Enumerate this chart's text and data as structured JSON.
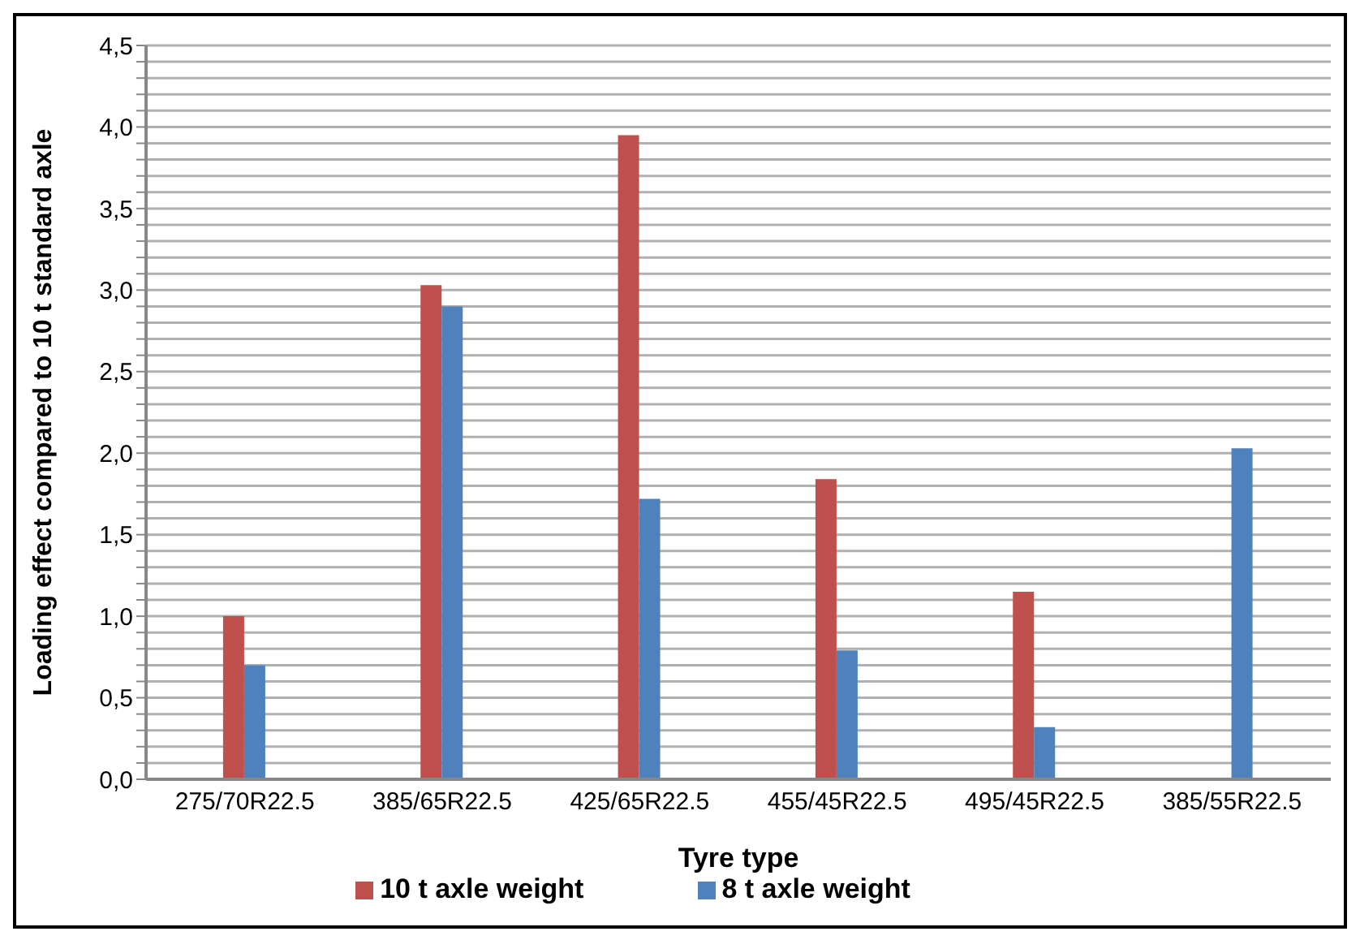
{
  "chart_data": {
    "type": "bar",
    "xlabel": "Tyre type",
    "ylabel": "Loading effect compared to 10 t standard axle",
    "categories": [
      "275/70R22.5",
      "385/65R22.5",
      "425/65R22.5",
      "455/45R22.5",
      "495/45R22.5",
      "385/55R22.5"
    ],
    "series": [
      {
        "name": "10 t axle weight",
        "color": "#c0504d",
        "values": [
          1.0,
          3.03,
          3.95,
          1.84,
          1.15,
          null
        ]
      },
      {
        "name": "8 t axle weight",
        "color": "#4f81bd",
        "values": [
          0.7,
          2.9,
          1.72,
          0.79,
          0.32,
          2.03
        ]
      }
    ],
    "ylim": [
      0,
      4.5
    ],
    "yticks": [
      {
        "value": 0,
        "label": "0,0"
      },
      {
        "value": 0.1,
        "label": null
      },
      {
        "value": 0.2,
        "label": null
      },
      {
        "value": 0.3,
        "label": null
      },
      {
        "value": 0.4,
        "label": null
      },
      {
        "value": 0.5,
        "label": "0,5"
      },
      {
        "value": 0.6,
        "label": null
      },
      {
        "value": 0.7,
        "label": null
      },
      {
        "value": 0.8,
        "label": null
      },
      {
        "value": 0.9,
        "label": null
      },
      {
        "value": 1,
        "label": "1,0"
      },
      {
        "value": 1.1,
        "label": null
      },
      {
        "value": 1.2,
        "label": null
      },
      {
        "value": 1.3,
        "label": null
      },
      {
        "value": 1.4,
        "label": null
      },
      {
        "value": 1.5,
        "label": "1,5"
      },
      {
        "value": 1.6,
        "label": null
      },
      {
        "value": 1.7,
        "label": null
      },
      {
        "value": 1.8,
        "label": null
      },
      {
        "value": 1.9,
        "label": null
      },
      {
        "value": 2,
        "label": "2,0"
      },
      {
        "value": 2.1,
        "label": null
      },
      {
        "value": 2.2,
        "label": null
      },
      {
        "value": 2.3,
        "label": null
      },
      {
        "value": 2.4,
        "label": null
      },
      {
        "value": 2.5,
        "label": "2,5"
      },
      {
        "value": 2.6,
        "label": null
      },
      {
        "value": 2.7,
        "label": null
      },
      {
        "value": 2.8,
        "label": null
      },
      {
        "value": 2.9,
        "label": null
      },
      {
        "value": 3,
        "label": "3,0"
      },
      {
        "value": 3.1,
        "label": null
      },
      {
        "value": 3.2,
        "label": null
      },
      {
        "value": 3.3,
        "label": null
      },
      {
        "value": 3.4,
        "label": null
      },
      {
        "value": 3.5,
        "label": "3,5"
      },
      {
        "value": 3.6,
        "label": null
      },
      {
        "value": 3.7,
        "label": null
      },
      {
        "value": 3.8,
        "label": null
      },
      {
        "value": 3.9,
        "label": null
      },
      {
        "value": 4,
        "label": "4,0"
      },
      {
        "value": 4.1,
        "label": null
      },
      {
        "value": 4.2,
        "label": null
      },
      {
        "value": 4.3,
        "label": null
      },
      {
        "value": 4.4,
        "label": null
      },
      {
        "value": 4.5,
        "label": "4,5"
      }
    ],
    "grid": "y",
    "legend": "bottom"
  }
}
